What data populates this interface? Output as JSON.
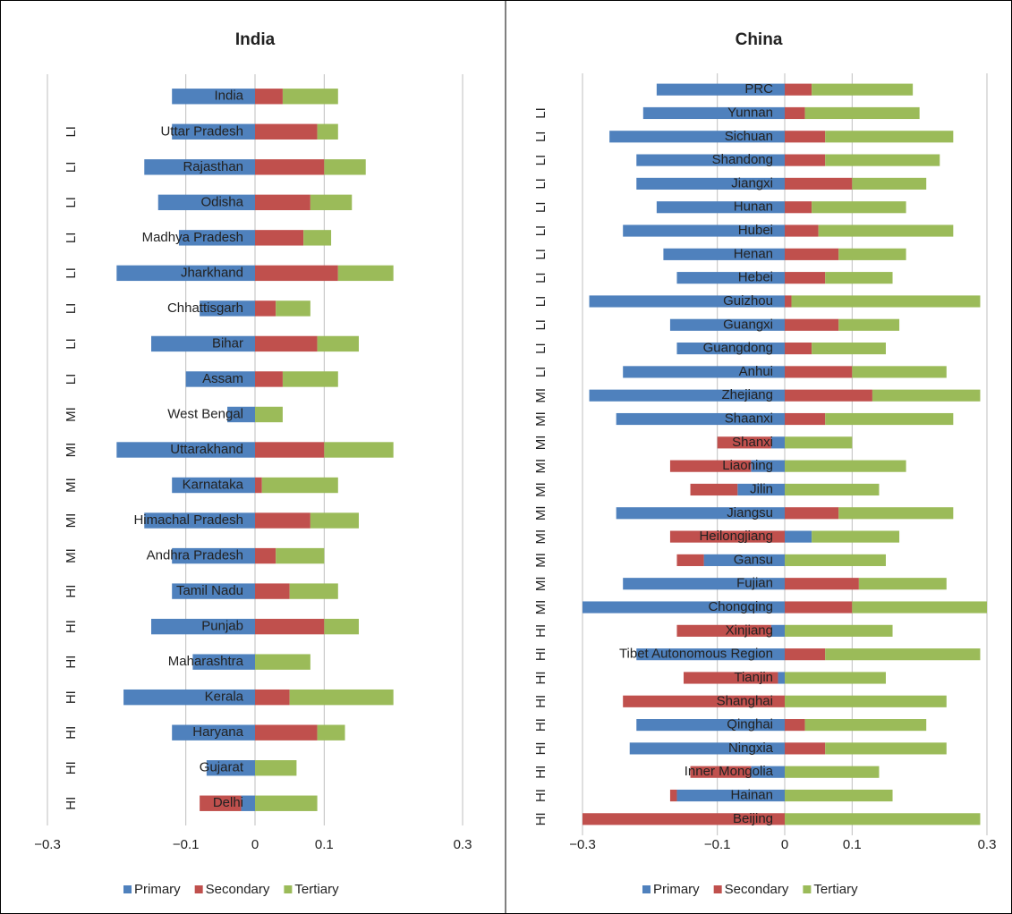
{
  "chart_data": [
    {
      "type": "bar",
      "orientation": "horizontal",
      "stacked": true,
      "title": "India",
      "categories": [
        "India",
        "Uttar Pradesh",
        "Rajasthan",
        "Odisha",
        "Madhya Pradesh",
        "Jharkhand",
        "Chhattisgarh",
        "Bihar",
        "Assam",
        "West Bengal",
        "Uttarakhand",
        "Karnataka",
        "Himachal Pradesh",
        "Andhra Pradesh",
        "Tamil Nadu",
        "Punjab",
        "Maharashtra",
        "Kerala",
        "Haryana",
        "Gujarat",
        "Delhi"
      ],
      "groups": [
        null,
        "LI",
        "LI",
        "LI",
        "LI",
        "LI",
        "LI",
        "LI",
        "LI",
        "MI",
        "MI",
        "MI",
        "MI",
        "MI",
        "HI",
        "HI",
        "HI",
        "HI",
        "HI",
        "HI",
        "HI"
      ],
      "series": [
        {
          "name": "Primary",
          "color": "#4f81bd",
          "values": [
            -0.12,
            -0.12,
            -0.16,
            -0.14,
            -0.11,
            -0.2,
            -0.08,
            -0.15,
            -0.1,
            -0.04,
            -0.2,
            -0.12,
            -0.16,
            -0.12,
            -0.12,
            -0.15,
            -0.09,
            -0.19,
            -0.12,
            -0.07,
            -0.02
          ]
        },
        {
          "name": "Secondary",
          "color": "#c0504d",
          "values": [
            0.04,
            0.09,
            0.1,
            0.08,
            0.07,
            0.12,
            0.03,
            0.09,
            0.04,
            0,
            0.1,
            0.01,
            0.08,
            0.03,
            0.05,
            0.1,
            0,
            0.05,
            0.09,
            0,
            -0.06
          ]
        },
        {
          "name": "Tertiary",
          "color": "#9bbb59",
          "values": [
            0.08,
            0.03,
            0.06,
            0.06,
            0.04,
            0.08,
            0.05,
            0.06,
            0.08,
            0.04,
            0.1,
            0.11,
            0.07,
            0.07,
            0.07,
            0.05,
            0.08,
            0.15,
            0.04,
            0.06,
            0.09
          ]
        }
      ],
      "xlim": [
        -0.3,
        0.3
      ],
      "xticks": [
        {
          "value": -0.3,
          "label": "−0.3"
        },
        {
          "value": -0.1,
          "label": "−0.1"
        },
        0,
        0.1,
        0.3
      ],
      "grid": true,
      "legend": "bottom"
    },
    {
      "type": "bar",
      "orientation": "horizontal",
      "stacked": true,
      "title": "China",
      "categories": [
        "PRC",
        "Yunnan",
        "Sichuan",
        "Shandong",
        "Jiangxi",
        "Hunan",
        "Hubei",
        "Henan",
        "Hebei",
        "Guizhou",
        "Guangxi",
        "Guangdong",
        "Anhui",
        "Zhejiang",
        "Shaanxi",
        "Shanxi",
        "Liaoning",
        "Jilin",
        "Jiangsu",
        "Heilongjiang",
        "Gansu",
        "Fujian",
        "Chongqing",
        "Xinjiang",
        "Tibet Autonomous Region",
        "Tianjin",
        "Shanghai",
        "Qinghai",
        "Ningxia",
        "Inner Mongolia",
        "Hainan",
        "Beijing"
      ],
      "groups": [
        null,
        "LI",
        "LI",
        "LI",
        "LI",
        "LI",
        "LI",
        "LI",
        "LI",
        "LI",
        "LI",
        "LI",
        "LI",
        "MI",
        "MI",
        "MI",
        "MI",
        "MI",
        "MI",
        "MI",
        "MI",
        "MI",
        "MI",
        "HI",
        "HI",
        "HI",
        "HI",
        "HI",
        "HI",
        "HI",
        "HI",
        "HI"
      ],
      "series": [
        {
          "name": "Primary",
          "color": "#4f81bd",
          "values": [
            -0.19,
            -0.21,
            -0.26,
            -0.22,
            -0.22,
            -0.19,
            -0.24,
            -0.18,
            -0.16,
            -0.29,
            -0.17,
            -0.16,
            -0.24,
            -0.29,
            -0.25,
            -0.02,
            -0.05,
            -0.07,
            -0.25,
            0.04,
            -0.12,
            -0.24,
            -0.3,
            -0.02,
            -0.22,
            -0.01,
            0,
            -0.22,
            -0.23,
            -0.05,
            -0.16,
            0
          ]
        },
        {
          "name": "Secondary",
          "color": "#c0504d",
          "values": [
            0.04,
            0.03,
            0.06,
            0.06,
            0.1,
            0.04,
            0.05,
            0.08,
            0.06,
            0.01,
            0.08,
            0.04,
            0.1,
            0.13,
            0.06,
            -0.08,
            -0.12,
            -0.07,
            0.08,
            -0.17,
            -0.04,
            0.11,
            0.1,
            -0.14,
            0.06,
            -0.14,
            -0.24,
            0.03,
            0.06,
            -0.09,
            -0.01,
            -0.3
          ]
        },
        {
          "name": "Tertiary",
          "color": "#9bbb59",
          "values": [
            0.15,
            0.17,
            0.19,
            0.17,
            0.11,
            0.14,
            0.2,
            0.1,
            0.1,
            0.28,
            0.09,
            0.11,
            0.14,
            0.16,
            0.19,
            0.1,
            0.18,
            0.14,
            0.17,
            0.13,
            0.15,
            0.13,
            0.2,
            0.16,
            0.23,
            0.15,
            0.24,
            0.18,
            0.18,
            0.14,
            0.16,
            0.29
          ]
        }
      ],
      "xlim": [
        -0.3,
        0.3
      ],
      "xticks": [
        {
          "value": -0.3,
          "label": "−0.3"
        },
        {
          "value": -0.1,
          "label": "−0.1"
        },
        0,
        0.1,
        0.3
      ],
      "grid": true,
      "legend": "bottom"
    }
  ]
}
